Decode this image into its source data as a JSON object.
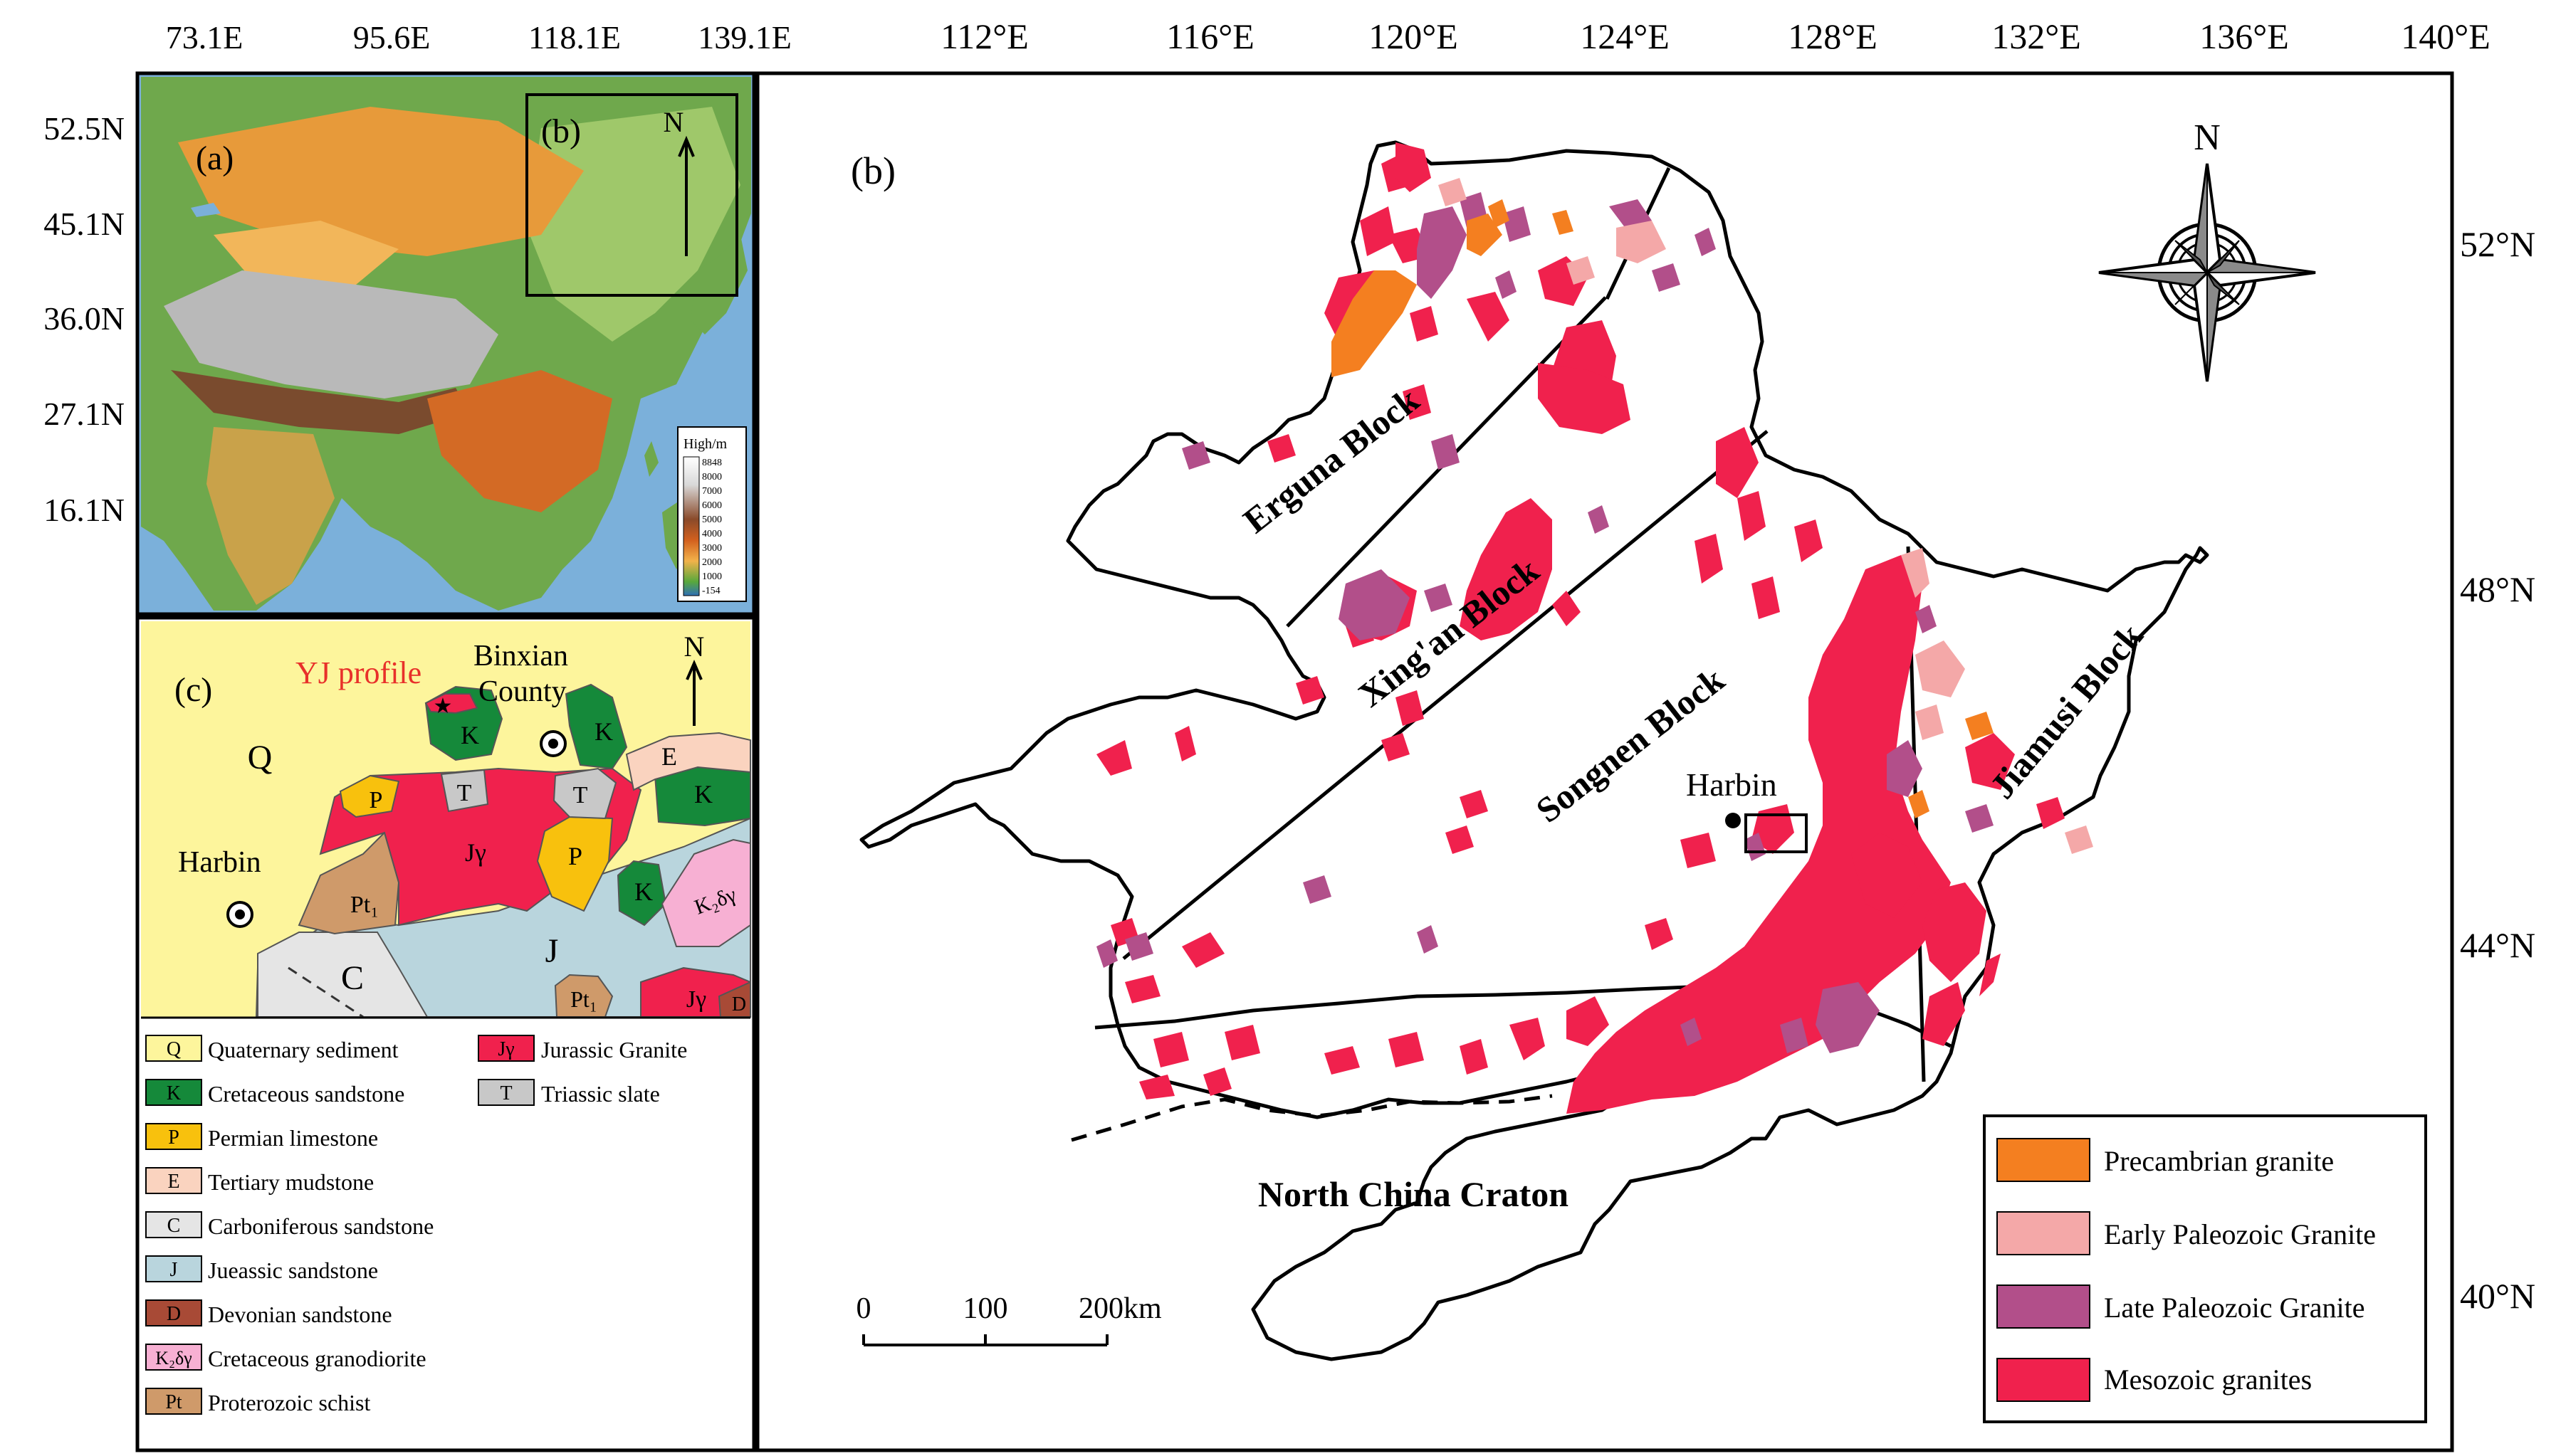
{
  "colors": {
    "precambrian": "#f47f20",
    "early_paleozoic": "#f4a8a8",
    "late_paleozoic": "#b24f8a",
    "mesozoic": "#f0214d",
    "quaternary": "#fdf59c",
    "cretaceous_sandstone": "#15893a",
    "permian_limestone": "#f8c10d",
    "tertiary_mudstone": "#fad3bf",
    "carboniferous_sandstone": "#e5e5e5",
    "jurassic_sandstone": "#b9d5dd",
    "devonian_sandstone": "#a84a36",
    "cretaceous_granodiorite": "#f7b0d3",
    "proterozoic_schist": "#cf9a6a",
    "triassic_slate": "#c8c8c8",
    "jurassic_granite": "#f0214d"
  },
  "panel_a": {
    "label": "(a)",
    "inset_label": "(b)",
    "north": "N",
    "lon_ticks": [
      "73.1E",
      "95.6E",
      "118.1E",
      "139.1E"
    ],
    "lat_ticks": [
      "52.5N",
      "45.1N",
      "36.0N",
      "27.1N",
      "16.1N"
    ],
    "elevation_legend": {
      "title": "High/m",
      "levels": [
        "8848",
        "8000",
        "7000",
        "6000",
        "5000",
        "4000",
        "3000",
        "2000",
        "1000",
        "-154"
      ]
    }
  },
  "panel_b": {
    "label": "(b)",
    "north": "N",
    "lon_ticks": [
      "112°E",
      "116°E",
      "120°E",
      "124°E",
      "128°E",
      "132°E",
      "136°E",
      "140°E"
    ],
    "lat_ticks": [
      "52°N",
      "48°N",
      "44°N",
      "40°N"
    ],
    "blocks": {
      "erguna": "Erguna Block",
      "xingan": "Xing'an Block",
      "songnen": "Songnen Block",
      "jiamusi": "Jiamusi Block"
    },
    "city": "Harbin",
    "craton": "North China Craton",
    "scale": {
      "labels": [
        "0",
        "100",
        "200km"
      ]
    },
    "legend": [
      {
        "key": "precambrian",
        "label": "Precambrian granite"
      },
      {
        "key": "early_paleozoic",
        "label": "Early Paleozoic Granite"
      },
      {
        "key": "late_paleozoic",
        "label": "Late Paleozoic Granite"
      },
      {
        "key": "mesozoic",
        "label": "Mesozoic granites"
      }
    ]
  },
  "panel_c": {
    "label": "(c)",
    "north": "N",
    "profile_label": "YJ profile",
    "county_line1": "Binxian",
    "county_line2": "County",
    "city": "Harbin",
    "unit_labels": {
      "Q": "Q",
      "K": "K",
      "E": "E",
      "P": "P",
      "T": "T",
      "Jg": "Jγ",
      "Pt1": "Pt₁",
      "C": "C",
      "J": "J",
      "K2dg": "K₂δγ",
      "D": "D"
    },
    "legend_left": [
      {
        "code": "Q",
        "key": "quaternary",
        "label": "Quaternary sediment"
      },
      {
        "code": "K",
        "key": "cretaceous_sandstone",
        "label": "Cretaceous sandstone"
      },
      {
        "code": "P",
        "key": "permian_limestone",
        "label": "Permian limestone"
      },
      {
        "code": "E",
        "key": "tertiary_mudstone",
        "label": "Tertiary  mudstone"
      },
      {
        "code": "C",
        "key": "carboniferous_sandstone",
        "label": "Carboniferous sandstone"
      },
      {
        "code": "J",
        "key": "jurassic_sandstone",
        "label": "Jueassic  sandstone"
      },
      {
        "code": "D",
        "key": "devonian_sandstone",
        "label": "Devonian sandstone"
      },
      {
        "code": "K₂δγ",
        "key": "cretaceous_granodiorite",
        "label": "Cretaceous granodiorite"
      },
      {
        "code": "Pt",
        "key": "proterozoic_schist",
        "label": "Proterozoic schist"
      }
    ],
    "legend_right": [
      {
        "code": "Jγ",
        "key": "jurassic_granite",
        "label": "Jurassic Granite"
      },
      {
        "code": "T",
        "key": "triassic_slate",
        "label": "Triassic  slate"
      }
    ]
  }
}
